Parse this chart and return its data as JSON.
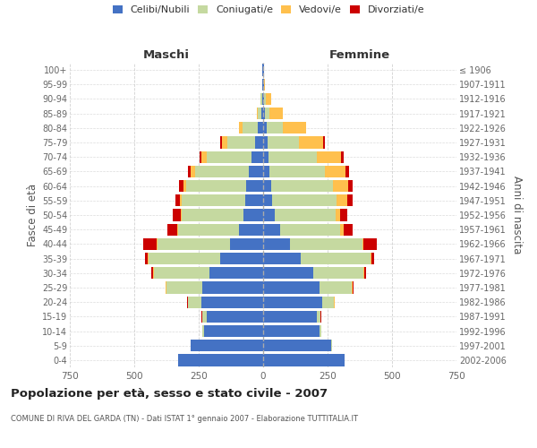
{
  "age_groups": [
    "0-4",
    "5-9",
    "10-14",
    "15-19",
    "20-24",
    "25-29",
    "30-34",
    "35-39",
    "40-44",
    "45-49",
    "50-54",
    "55-59",
    "60-64",
    "65-69",
    "70-74",
    "75-79",
    "80-84",
    "85-89",
    "90-94",
    "95-99",
    "100+"
  ],
  "birth_years": [
    "2002-2006",
    "1997-2001",
    "1992-1996",
    "1987-1991",
    "1982-1986",
    "1977-1981",
    "1972-1976",
    "1967-1971",
    "1962-1966",
    "1957-1961",
    "1952-1956",
    "1947-1951",
    "1942-1946",
    "1937-1941",
    "1932-1936",
    "1927-1931",
    "1922-1926",
    "1917-1921",
    "1912-1916",
    "1907-1911",
    "≤ 1906"
  ],
  "maschi_celibe": [
    330,
    280,
    230,
    220,
    240,
    235,
    210,
    165,
    130,
    95,
    75,
    70,
    65,
    55,
    45,
    30,
    20,
    8,
    5,
    3,
    2
  ],
  "maschi_coniugato": [
    0,
    2,
    5,
    15,
    50,
    140,
    215,
    280,
    280,
    235,
    240,
    245,
    235,
    210,
    175,
    110,
    60,
    12,
    5,
    2,
    0
  ],
  "maschi_vedovo": [
    0,
    0,
    0,
    2,
    2,
    2,
    2,
    2,
    2,
    3,
    5,
    8,
    10,
    15,
    18,
    20,
    15,
    5,
    2,
    0,
    0
  ],
  "maschi_divorziato": [
    0,
    0,
    0,
    2,
    2,
    3,
    8,
    10,
    55,
    40,
    30,
    18,
    15,
    10,
    10,
    5,
    0,
    0,
    0,
    0,
    0
  ],
  "femmine_celibe": [
    315,
    265,
    220,
    210,
    230,
    220,
    195,
    145,
    105,
    65,
    45,
    35,
    30,
    25,
    22,
    18,
    15,
    8,
    5,
    2,
    2
  ],
  "femmine_coniugata": [
    0,
    2,
    5,
    12,
    45,
    125,
    195,
    270,
    280,
    235,
    235,
    250,
    240,
    215,
    185,
    120,
    60,
    18,
    5,
    1,
    0
  ],
  "femmine_vedova": [
    0,
    0,
    0,
    0,
    2,
    2,
    3,
    4,
    5,
    12,
    20,
    40,
    60,
    80,
    95,
    95,
    90,
    50,
    20,
    5,
    2
  ],
  "femmine_divorziata": [
    0,
    0,
    0,
    2,
    2,
    3,
    5,
    10,
    50,
    35,
    28,
    22,
    18,
    12,
    10,
    8,
    2,
    0,
    0,
    0,
    0
  ],
  "colors": {
    "celibe": "#4472c4",
    "coniugato": "#c5d9a0",
    "vedovo": "#ffc04d",
    "divorziato": "#cc0000"
  },
  "title": "Popolazione per età, sesso e stato civile - 2007",
  "subtitle": "COMUNE DI RIVA DEL GARDA (TN) - Dati ISTAT 1° gennaio 2007 - Elaborazione TUTTITALIA.IT",
  "xlabel_maschi": "Maschi",
  "xlabel_femmine": "Femmine",
  "ylabel_left": "Fasce di età",
  "ylabel_right": "Anni di nascita",
  "xlim": 750,
  "background_color": "#ffffff",
  "grid_color": "#cccccc"
}
